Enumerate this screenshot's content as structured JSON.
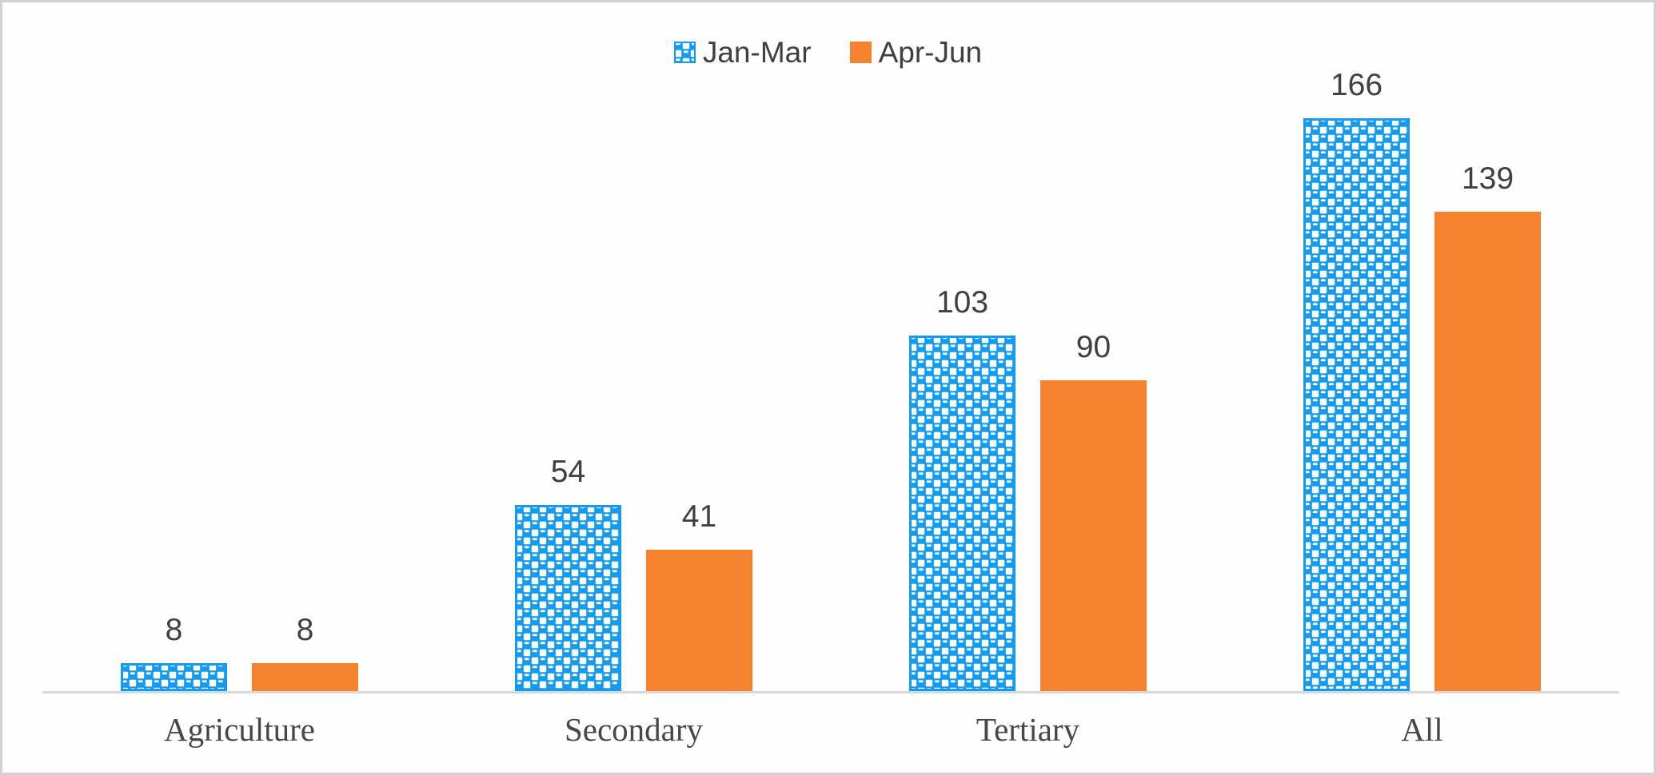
{
  "chart_data": {
    "type": "bar",
    "title": "",
    "xlabel": "",
    "ylabel": "",
    "categories": [
      "Agriculture",
      "Secondary",
      "Tertiary",
      "All"
    ],
    "series": [
      {
        "name": "Jan-Mar",
        "color": "#129bf1",
        "fill_style": "checker-pattern",
        "values": [
          8,
          54,
          103,
          166
        ]
      },
      {
        "name": "Apr-Jun",
        "color": "#f5822f",
        "fill_style": "solid",
        "values": [
          8,
          41,
          90,
          139
        ]
      }
    ],
    "data_labels": [
      [
        8,
        54,
        103,
        166
      ],
      [
        8,
        41,
        90,
        139
      ]
    ],
    "ylim": [
      0,
      176
    ],
    "gridlines": false,
    "y_axis_visible": false,
    "legend_position": "top-center",
    "axis_line_color": "#d9d9d9",
    "frame_border_color": "#d2d2d2",
    "data_label_color": "#404040",
    "category_label_color": "#474747",
    "legend_text_color": "#3f3f3f"
  }
}
